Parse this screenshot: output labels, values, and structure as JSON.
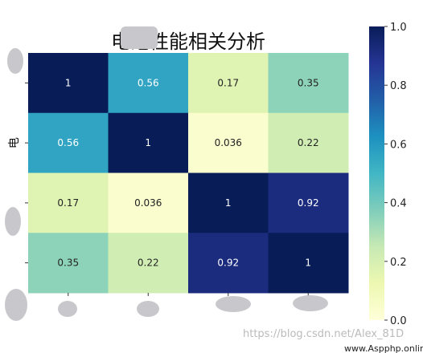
{
  "chart_data": {
    "type": "heatmap",
    "title": "电池性能相关分析",
    "row_labels": [
      "",
      "电",
      "",
      ""
    ],
    "col_labels": [
      "",
      "",
      "",
      ""
    ],
    "matrix": [
      [
        1,
        0.56,
        0.17,
        0.35
      ],
      [
        0.56,
        1,
        0.036,
        0.22
      ],
      [
        0.17,
        0.036,
        1,
        0.92
      ],
      [
        0.35,
        0.22,
        0.92,
        1
      ]
    ],
    "cell_text": [
      [
        "1",
        "0.56",
        "0.17",
        "0.35"
      ],
      [
        "0.56",
        "1",
        "0.036",
        "0.22"
      ],
      [
        "0.17",
        "0.036",
        "1",
        "0.92"
      ],
      [
        "0.35",
        "0.22",
        "0.92",
        "1"
      ]
    ],
    "colormap": "YlGnBu",
    "vmin": 0,
    "vmax": 1,
    "colorbar_ticks": [
      0.0,
      0.2,
      0.4,
      0.6,
      0.8,
      1.0
    ],
    "colorbar_tick_labels": [
      "0.0",
      "0.2",
      "0.4",
      "0.6",
      "0.8",
      "1.0"
    ],
    "colors": {
      "ylgnbu_stops": [
        "#ffffd9",
        "#edf8b1",
        "#c7e9b4",
        "#7fcdbb",
        "#41b6c4",
        "#1d91c0",
        "#225ea8",
        "#253494",
        "#081d58"
      ],
      "text_dark": "#222222",
      "text_light": "#ffffff"
    }
  },
  "watermarks": [
    "https://blog.csdn.net/Alex_81D",
    "www.Aspphp.online"
  ]
}
